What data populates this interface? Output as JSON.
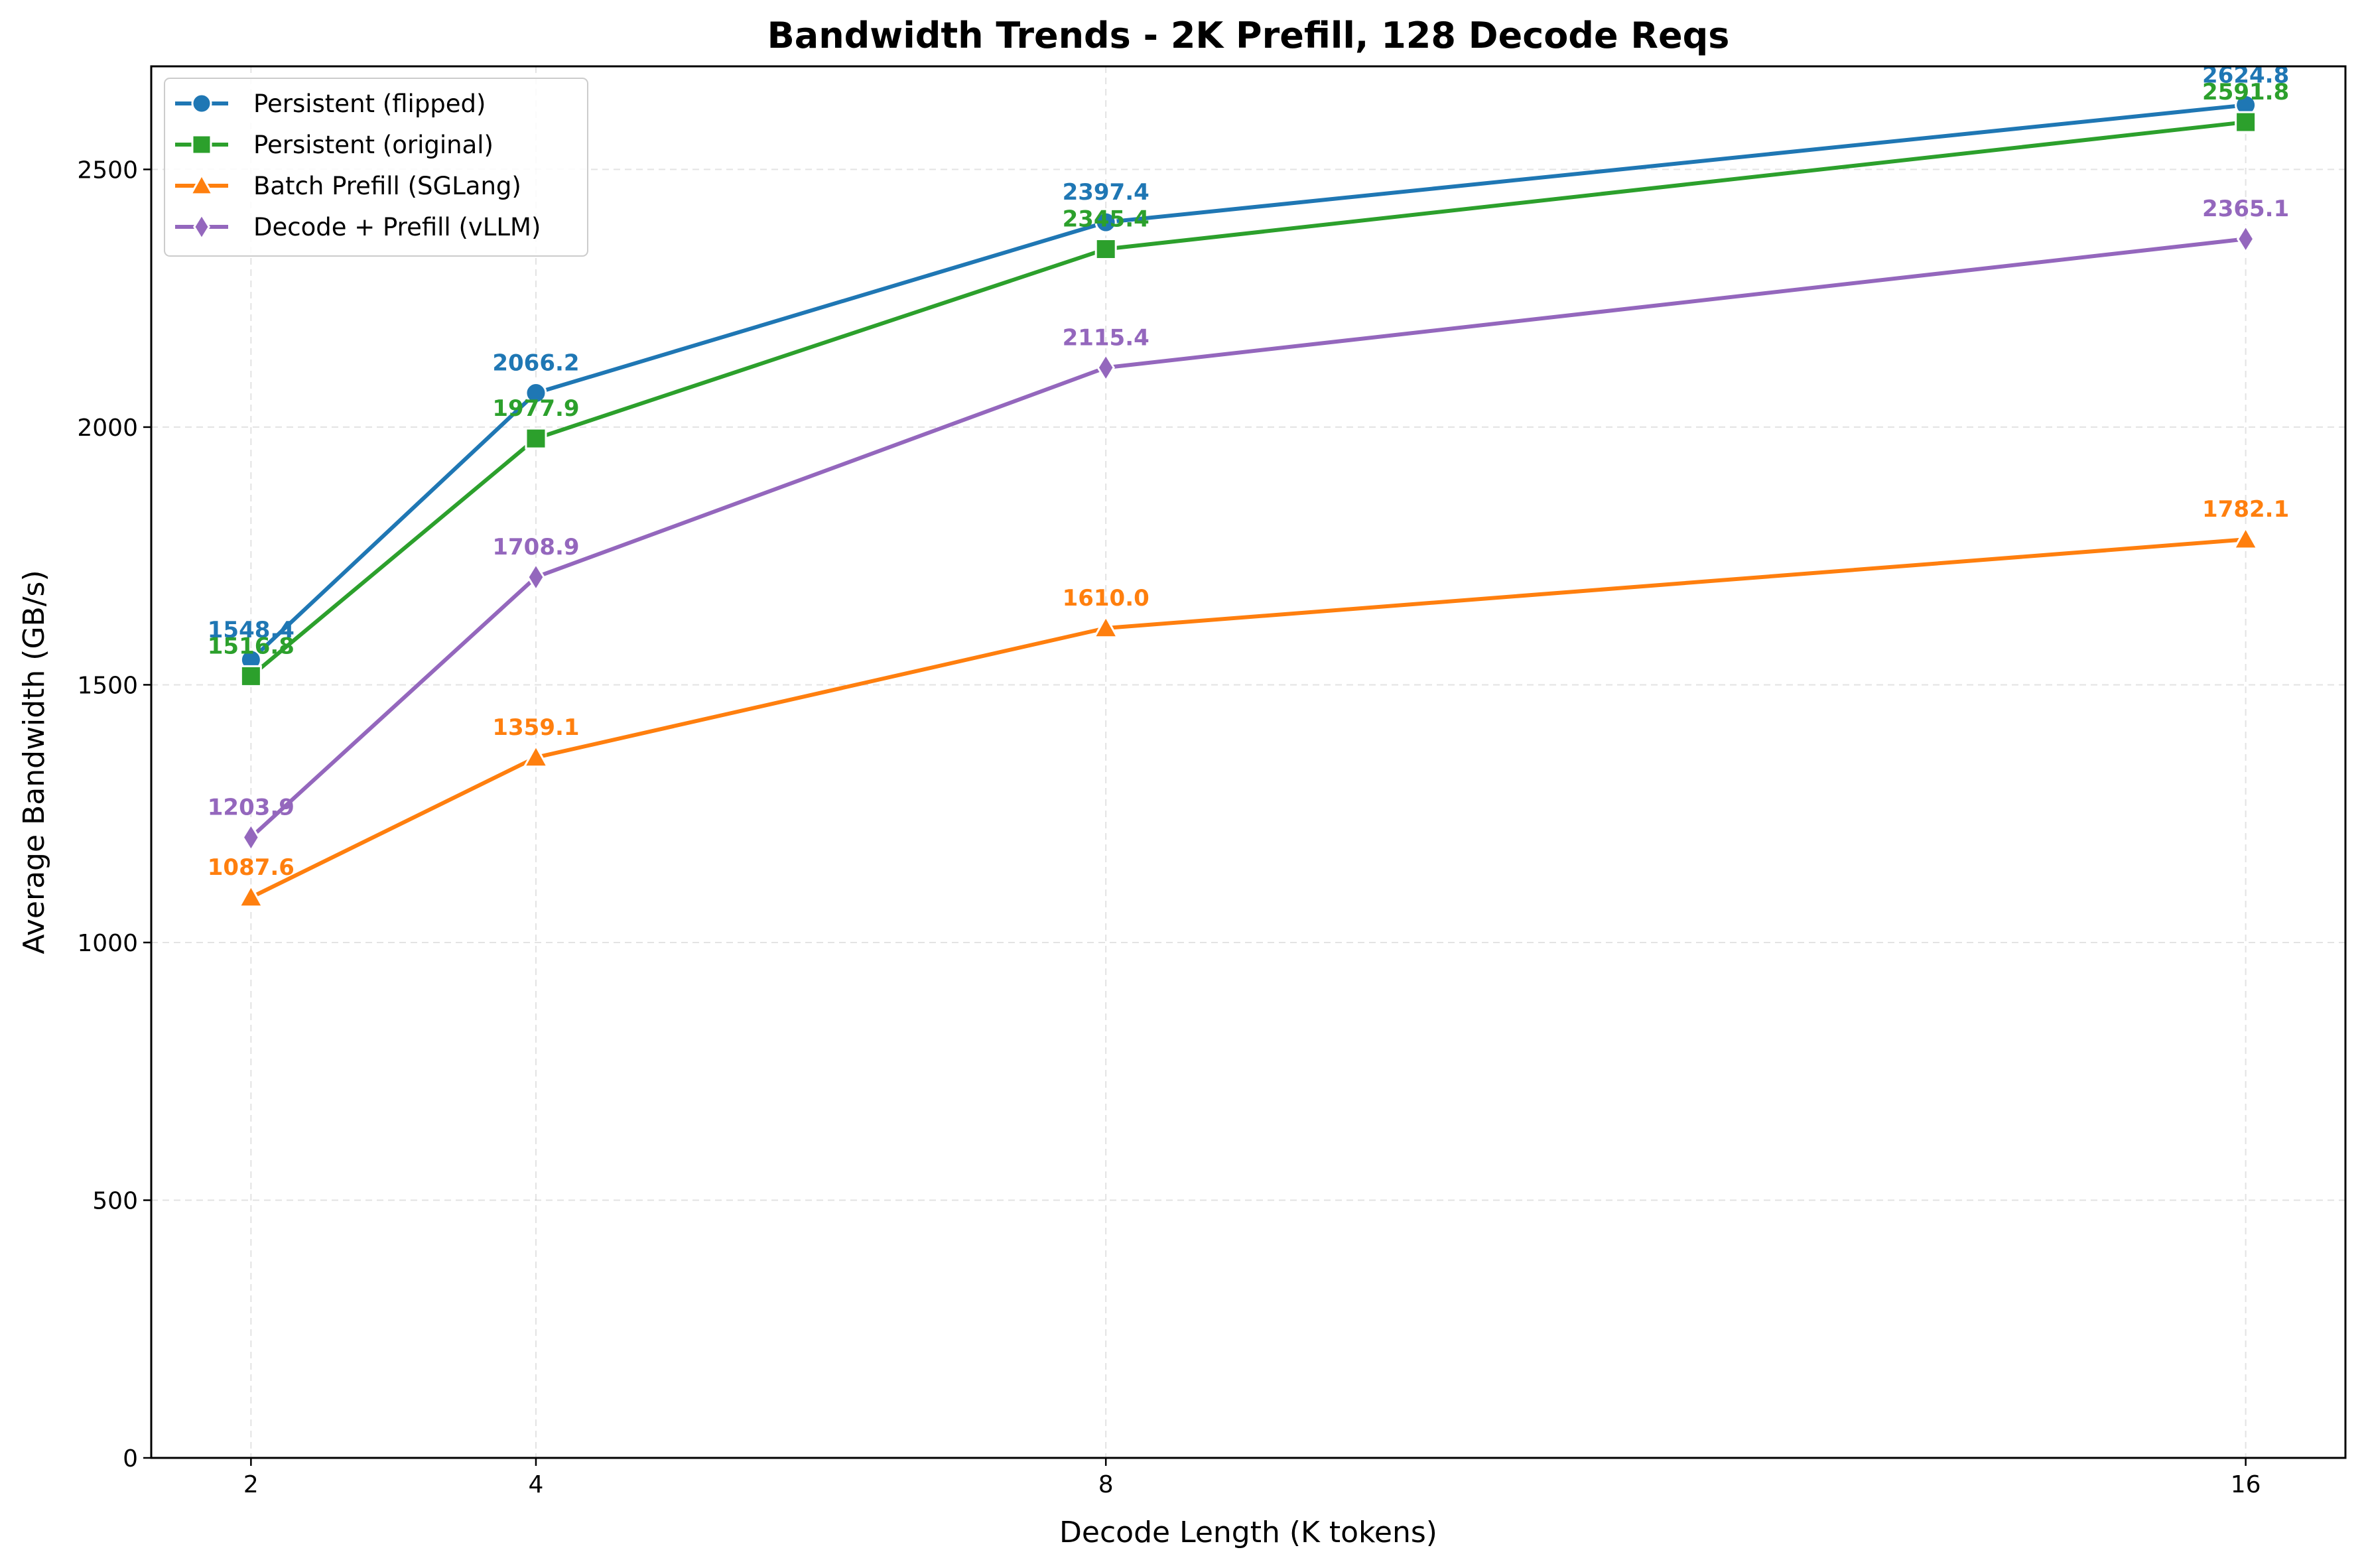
{
  "chart_data": {
    "type": "line",
    "title": "Bandwidth Trends - 2K Prefill, 128 Decode Reqs",
    "xlabel": "Decode Length (K tokens)",
    "ylabel": "Average Bandwidth (GB/s)",
    "x": [
      2,
      4,
      8,
      16
    ],
    "x_tick_labels": [
      "2",
      "4",
      "8",
      "16"
    ],
    "xlim": [
      1.3,
      16.7
    ],
    "ylim": [
      0,
      2700
    ],
    "y_ticks": [
      0,
      500,
      1000,
      1500,
      2000,
      2500
    ],
    "grid": true,
    "legend_position": "top-left",
    "series": [
      {
        "name": "Persistent (flipped)",
        "color": "#1f77b4",
        "marker": "circle",
        "values": [
          1548.4,
          2066.2,
          2397.4,
          2624.8
        ],
        "labels": [
          "1548.4",
          "2066.2",
          "2397.4",
          "2624.8"
        ]
      },
      {
        "name": "Persistent (original)",
        "color": "#2ca02c",
        "marker": "square",
        "values": [
          1516.8,
          1977.9,
          2345.4,
          2591.8
        ],
        "labels": [
          "1516.8",
          "1977.9",
          "2345.4",
          "2591.8"
        ]
      },
      {
        "name": "Batch Prefill (SGLang)",
        "color": "#ff7f0e",
        "marker": "triangle",
        "values": [
          1087.6,
          1359.1,
          1610.0,
          1782.1
        ],
        "labels": [
          "1087.6",
          "1359.1",
          "1610.0",
          "1782.1"
        ]
      },
      {
        "name": "Decode + Prefill (vLLM)",
        "color": "#9467bd",
        "marker": "diamond",
        "values": [
          1203.9,
          1708.9,
          2115.4,
          2365.1
        ],
        "labels": [
          "1203.9",
          "1708.9",
          "2115.4",
          "2365.1"
        ]
      }
    ]
  }
}
